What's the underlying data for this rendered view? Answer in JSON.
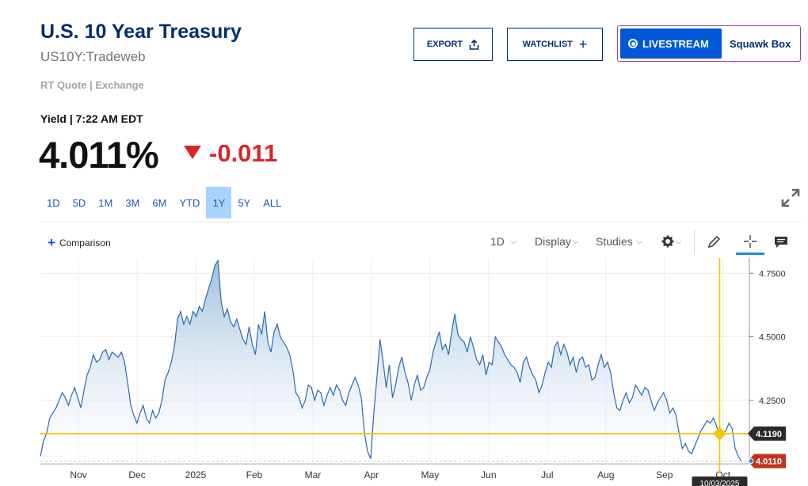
{
  "header": {
    "title": "U.S. 10 Year Treasury",
    "symbol": "US10Y:Tradeweb",
    "rt_quote": "RT Quote | Exchange",
    "export_label": "EXPORT",
    "watchlist_label": "WATCHLIST",
    "livestream_label": "LIVESTREAM",
    "squawk_label": "Squawk Box"
  },
  "quote": {
    "yield_label": "Yield | 7:22 AM EDT",
    "price": "4.011%",
    "change": "-0.011",
    "change_color": "#d62728"
  },
  "ranges": [
    "1D",
    "5D",
    "1M",
    "3M",
    "6M",
    "YTD",
    "1Y",
    "5Y",
    "ALL"
  ],
  "active_range": "1Y",
  "toolbar": {
    "comparison_label": "Comparison",
    "interval_label": "1D",
    "display_label": "Display",
    "studies_label": "Studies"
  },
  "chart_data": {
    "type": "area",
    "x_tick_labels": [
      "Nov",
      "Dec",
      "2025",
      "Feb",
      "Mar",
      "Apr",
      "May",
      "Jun",
      "Jul",
      "Aug",
      "Sep",
      "Oct"
    ],
    "y_tick_labels": [
      "4.7500",
      "4.5000",
      "4.2500"
    ],
    "ylim": [
      4.0,
      4.81
    ],
    "series": [
      {
        "values": [
          4.03,
          4.09,
          4.12,
          4.18,
          4.2,
          4.22,
          4.25,
          4.28,
          4.26,
          4.23,
          4.27,
          4.3,
          4.26,
          4.22,
          4.29,
          4.35,
          4.38,
          4.43,
          4.4,
          4.41,
          4.44,
          4.45,
          4.41,
          4.44,
          4.43,
          4.42,
          4.44,
          4.4,
          4.32,
          4.23,
          4.19,
          4.16,
          4.2,
          4.23,
          4.18,
          4.16,
          4.21,
          4.18,
          4.2,
          4.25,
          4.33,
          4.36,
          4.4,
          4.46,
          4.57,
          4.6,
          4.55,
          4.58,
          4.55,
          4.6,
          4.58,
          4.62,
          4.6,
          4.65,
          4.69,
          4.73,
          4.78,
          4.8,
          4.64,
          4.58,
          4.61,
          4.56,
          4.54,
          4.57,
          4.53,
          4.49,
          4.47,
          4.54,
          4.47,
          4.43,
          4.55,
          4.51,
          4.6,
          4.48,
          4.44,
          4.52,
          4.55,
          4.5,
          4.48,
          4.46,
          4.43,
          4.37,
          4.28,
          4.26,
          4.22,
          4.25,
          4.31,
          4.3,
          4.25,
          4.29,
          4.28,
          4.23,
          4.27,
          4.3,
          4.27,
          4.31,
          4.29,
          4.25,
          4.23,
          4.28,
          4.31,
          4.34,
          4.31,
          4.26,
          4.12,
          4.05,
          4.02,
          4.2,
          4.34,
          4.49,
          4.4,
          4.3,
          4.39,
          4.26,
          4.31,
          4.38,
          4.42,
          4.36,
          4.32,
          4.25,
          4.31,
          4.35,
          4.29,
          4.3,
          4.34,
          4.37,
          4.44,
          4.48,
          4.52,
          4.45,
          4.47,
          4.43,
          4.52,
          4.59,
          4.51,
          4.49,
          4.48,
          4.44,
          4.5,
          4.46,
          4.41,
          4.39,
          4.43,
          4.35,
          4.4,
          4.39,
          4.5,
          4.48,
          4.46,
          4.43,
          4.41,
          4.39,
          4.38,
          4.36,
          4.32,
          4.4,
          4.42,
          4.38,
          4.35,
          4.33,
          4.28,
          4.31,
          4.36,
          4.4,
          4.38,
          4.46,
          4.48,
          4.43,
          4.47,
          4.44,
          4.39,
          4.42,
          4.36,
          4.41,
          4.42,
          4.38,
          4.39,
          4.33,
          4.34,
          4.39,
          4.43,
          4.38,
          4.4,
          4.36,
          4.28,
          4.22,
          4.21,
          4.25,
          4.28,
          4.24,
          4.26,
          4.31,
          4.29,
          4.27,
          4.3,
          4.29,
          4.25,
          4.21,
          4.24,
          4.26,
          4.28,
          4.25,
          4.2,
          4.22,
          4.19,
          4.12,
          4.06,
          4.08,
          4.05,
          4.04,
          4.07,
          4.1,
          4.13,
          4.15,
          4.17,
          4.16,
          4.18,
          4.15,
          4.1,
          4.12,
          4.13,
          4.16,
          4.14,
          4.06,
          4.03,
          4.01
        ]
      }
    ],
    "crosshair": {
      "date": "10/03/2025",
      "value": "4.1190"
    },
    "last_value": "4.0110",
    "line_color": "#2c6aad",
    "crosshair_color": "#f5c300",
    "last_value_color": "#c0341d"
  }
}
